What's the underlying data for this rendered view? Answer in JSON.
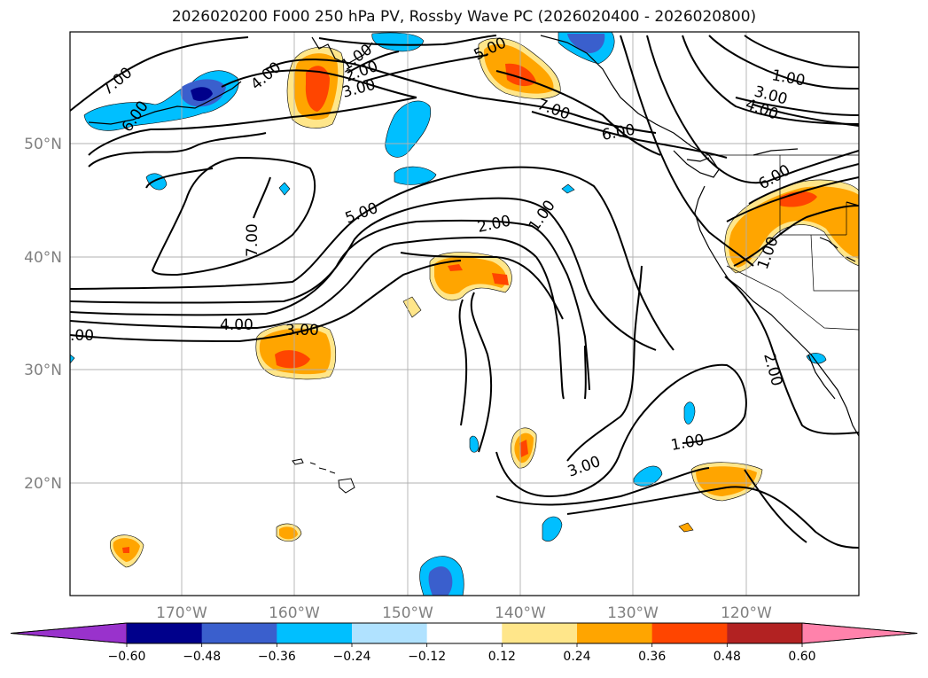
{
  "title": "2026020200 F000 250 hPa PV, Rossby Wave PC (2026020400 - 2026020800)",
  "map": {
    "lon_ticks": [
      "170°W",
      "160°W",
      "150°W",
      "140°W",
      "130°W",
      "120°W"
    ],
    "lat_ticks": [
      "50°N",
      "40°N",
      "30°N",
      "20°N"
    ],
    "lon_range": [
      -180,
      -110
    ],
    "lat_range": [
      10,
      60
    ],
    "gridlines": true
  },
  "contour_labels": [
    "7.00",
    "6.00",
    "4.00",
    "2.00",
    "3.00",
    "1.00",
    "5.00",
    "7.00",
    "5.00",
    "2.00",
    "1.00",
    "7.00",
    "1.00",
    "3.00",
    "4.00",
    "6.00",
    "6.00",
    "1.00",
    "4.00",
    "3.00",
    ".00",
    "2.00",
    "1.00",
    "3.00"
  ],
  "colorbar": {
    "labels": [
      "−0.60",
      "−0.48",
      "−0.36",
      "−0.24",
      "−0.12",
      "0.12",
      "0.24",
      "0.36",
      "0.48",
      "0.60"
    ],
    "levels": [
      -0.6,
      -0.48,
      -0.36,
      -0.24,
      -0.12,
      0.12,
      0.24,
      0.36,
      0.48,
      0.6
    ],
    "colors": [
      "#9932cc",
      "#00008b",
      "#3a5fcd",
      "#00bfff",
      "#b0e2ff",
      "#ffffff",
      "#ffe68a",
      "#ffa500",
      "#ff4500",
      "#b22222",
      "#ff82ab"
    ]
  }
}
